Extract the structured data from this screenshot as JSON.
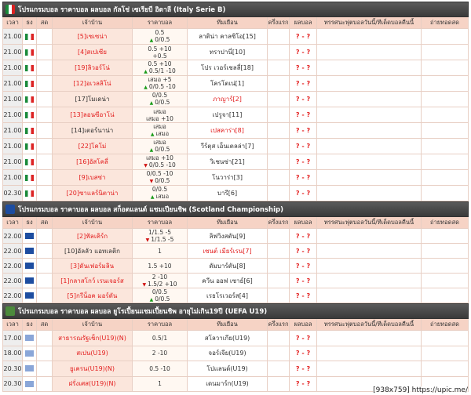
{
  "sections": [
    {
      "title": "โปรแกรมบอล ราคาบอล ผลบอล กัลโช่ เซเรียบี อิตาลี (Italy Serie B)",
      "flag": "italy",
      "headers": [
        "เวลา",
        "ธง",
        "สด",
        "เจ้าบ้าน",
        "ราคาบอล",
        "ทีมเยือน",
        "ครึ่งแรก",
        "ผลบอล",
        "ทรรศนะฟุตบอลวันนี้/ทีเด็ดบอลคืนนี้",
        "ถ่ายทอดสด"
      ],
      "rows": [
        {
          "time": "21.00",
          "home": "[5]เซเซน่า",
          "odds": [
            {
              "text": "0.5"
            },
            {
              "text": "0/0.5",
              "trend": "up"
            }
          ],
          "away": "ลาติน่า คาลซิโอ[15]",
          "result": "? - ?",
          "highlight": "home"
        },
        {
          "time": "21.00",
          "home": "[4]สเปเซีย",
          "odds": [
            {
              "text": "0.5 +10"
            },
            {
              "text": "+0.5"
            }
          ],
          "away": "ทราปานี่[10]",
          "result": "? - ?",
          "highlight": "home"
        },
        {
          "time": "21.00",
          "home": "[19]ลิวอร์โน่",
          "odds": [
            {
              "text": "0.5 +10"
            },
            {
              "text": "0.5/1 -10",
              "trend": "up"
            }
          ],
          "away": "โปร เวอร์เชลลี่[18]",
          "result": "? - ?",
          "highlight": "home"
        },
        {
          "time": "21.00",
          "home": "[12]อเวลลิโน่",
          "odds": [
            {
              "text": "เสมอ +5"
            },
            {
              "text": "0/0.5 -10",
              "trend": "up"
            }
          ],
          "away": "โครโตเน่[1]",
          "result": "? - ?",
          "highlight": "home"
        },
        {
          "time": "21.00",
          "home": "[17]โมเดน่า",
          "odds": [
            {
              "text": "0/0.5"
            },
            {
              "text": "0/0.5",
              "trend": "up"
            }
          ],
          "away": "ภาญาร์[2]",
          "result": "? - ?",
          "highlight": "away"
        },
        {
          "time": "21.00",
          "home": "[13]ลอนซีอาโน่",
          "odds": [
            {
              "text": "เสมอ"
            },
            {
              "text": "เสมอ +10"
            }
          ],
          "away": "เปรูจา[11]",
          "result": "? - ?",
          "highlight": "home"
        },
        {
          "time": "21.00",
          "home": "[14]เตอร์นาน่า",
          "odds": [
            {
              "text": "เสมอ"
            },
            {
              "text": "เสมอ",
              "trend": "up"
            }
          ],
          "away": "เปสคาร่า[8]",
          "result": "? - ?",
          "highlight": "away"
        },
        {
          "time": "21.00",
          "home": "[22]โคโม่",
          "odds": [
            {
              "text": "เสมอ"
            },
            {
              "text": "0/0.5",
              "trend": "up"
            }
          ],
          "away": "วีร์ตุส เอ็นเตลล่า[7]",
          "result": "? - ?",
          "highlight": "home"
        },
        {
          "time": "21.00",
          "home": "[16]อัสโคลี่",
          "odds": [
            {
              "text": "เสมอ +10"
            },
            {
              "text": "0/0.5 -10",
              "trend": "down"
            }
          ],
          "away": "วิเชนซ่า[21]",
          "result": "? - ?",
          "highlight": "home"
        },
        {
          "time": "21.00",
          "home": "[9]เบสซ่า",
          "odds": [
            {
              "text": "0/0.5 -10"
            },
            {
              "text": "0/0.5",
              "trend": "down"
            }
          ],
          "away": "โนวาร่า[3]",
          "result": "? - ?",
          "highlight": "home"
        },
        {
          "time": "02.30",
          "home": "[20]ซาแลร์นิตาน่า",
          "odds": [
            {
              "text": "0/0.5"
            },
            {
              "text": "เสมอ",
              "trend": "up"
            }
          ],
          "away": "บารี[6]",
          "result": "? - ?",
          "highlight": "home"
        }
      ]
    },
    {
      "title": "โปรแกรมบอล ราคาบอล ผลบอล สก็อตแลนด์ แชมเปียนชิพ (Scotland Championship)",
      "flag": "scotland",
      "headers": [
        "เวลา",
        "ธง",
        "สด",
        "เจ้าบ้าน",
        "ราคาบอล",
        "ทีมเยือน",
        "ครึ่งแรก",
        "ผลบอล",
        "ทรรศนะฟุตบอลวันนี้/ทีเด็ดบอลคืนนี้",
        "ถ่ายทอดสด"
      ],
      "rows": [
        {
          "time": "22.00",
          "home": "[2]ฟัลเคิร์ก",
          "odds": [
            {
              "text": "1/1.5 -5"
            },
            {
              "text": "1/1.5 -5",
              "trend": "down"
            }
          ],
          "away": "ลิฟวิงสตัน[9]",
          "result": "? - ?",
          "highlight": "home"
        },
        {
          "time": "22.00",
          "home": "[10]อัลลัว แอทเลติก",
          "odds": [
            {
              "text": "1"
            }
          ],
          "away": "เซนต์ เมียร์เรน[7]",
          "result": "? - ?",
          "highlight": "away"
        },
        {
          "time": "22.00",
          "home": "[3]ดันเฟอร์มลิน",
          "odds": [
            {
              "text": "1.5 +10"
            }
          ],
          "away": "ดัมบาร์ตัน[8]",
          "result": "? - ?",
          "highlight": "home"
        },
        {
          "time": "22.00",
          "home": "[1]กลาสโกว์ เรนเจอร์ส",
          "odds": [
            {
              "text": "2 -10"
            },
            {
              "text": "1.5/2 +10",
              "trend": "down"
            }
          ],
          "away": "ควีน ออฟ เซาธ์[6]",
          "result": "? - ?",
          "highlight": "home"
        },
        {
          "time": "22.00",
          "home": "[5]กรีน็อค มอร์ตัน",
          "odds": [
            {
              "text": "0/0.5"
            },
            {
              "text": "0/0.5",
              "trend": "up"
            }
          ],
          "away": "เรธโรเวอร์ส[4]",
          "result": "? - ?",
          "highlight": "home"
        }
      ]
    },
    {
      "title": "โปรแกรมบอล ราคาบอล ผลบอล ยูโรเปี้ยนแชมเปี้ยนชิพ อายุไม่เกิน19ปี (UEFA U19)",
      "flag": "europe",
      "headers": [
        "เวลา",
        "ธง",
        "สด",
        "เจ้าบ้าน",
        "ราคาบอล",
        "ทีมเยือน",
        "ครึ่งแรก",
        "ผลบอล",
        "ทรรศนะฟุตบอลวันนี้/ทีเด็ดบอลคืนนี้",
        "ถ่ายทอดสด"
      ],
      "rows": [
        {
          "time": "17.00",
          "home": "สาธารณรัฐเช็ก(U19)(N)",
          "odds": [
            {
              "text": "0.5/1"
            }
          ],
          "away": "สโลวาเกีย(U19)",
          "result": "? - ?",
          "highlight": "home"
        },
        {
          "time": "18.00",
          "home": "สเปน(U19)",
          "odds": [
            {
              "text": "2 -10"
            }
          ],
          "away": "จอร์เจีย(U19)",
          "result": "? - ?",
          "highlight": "home"
        },
        {
          "time": "20.30",
          "home": "ยูเครน(U19)(N)",
          "odds": [
            {
              "text": "0.5 -10"
            }
          ],
          "away": "โปแลนด์(U19)",
          "result": "? - ?",
          "highlight": "home"
        },
        {
          "time": "20.30",
          "home": "ฝรั่งเศส(U19)(N)",
          "odds": [
            {
              "text": "1"
            }
          ],
          "away": "เดนมาร์ก(U19)",
          "result": "? - ?",
          "highlight": "home"
        }
      ]
    }
  ],
  "watermark": "[938x759] https://upic.me/"
}
